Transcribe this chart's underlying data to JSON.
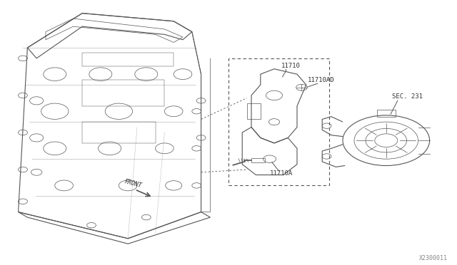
{
  "bg_color": "#ffffff",
  "line_color": "#555555",
  "label_color": "#333333",
  "label_11710": "11710",
  "label_11710AD": "11710AD",
  "label_11710A": "11710A",
  "label_sec231": "SEC. 231",
  "label_front": "FRONT",
  "watermark": "X2300011"
}
